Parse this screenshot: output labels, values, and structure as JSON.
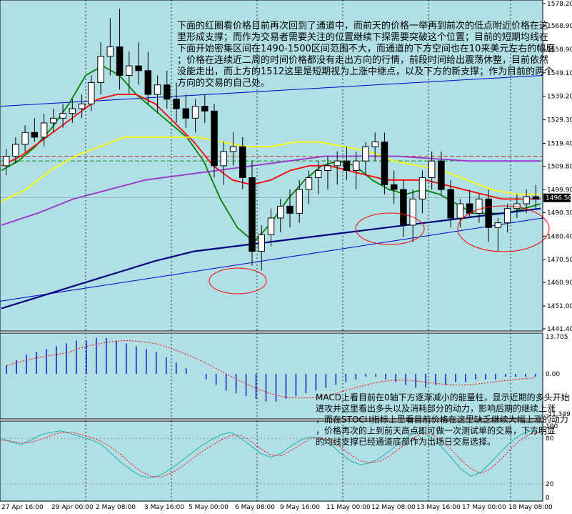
{
  "chart_data": {
    "type": "candlestick",
    "instrument_note": "",
    "price_axis": {
      "ticks": [
        "1578.20",
        "1568.90",
        "1558.90",
        "1549.10",
        "1539.20",
        "1529.30",
        "1519.40",
        "1509.80",
        "1499.90",
        "1490.30",
        "1480.40",
        "1470.50",
        "1460.90",
        "1451.00",
        "1441.40"
      ],
      "current_price_label": "1496.50",
      "range": [
        1441.4,
        1578.2
      ]
    },
    "time_axis": {
      "labels": [
        "27 Apr 16:00",
        "29 Apr 00:00",
        "2 May 08:00",
        "3 May 16:00",
        "5 May 00:00",
        "6 May 08:00",
        "9 May 16:00",
        "11 May 00:00",
        "12 May 08:00",
        "13 May 16:00",
        "17 May 00:00",
        "18 May 08:00"
      ]
    },
    "candles": [
      [
        1510,
        1517,
        1506,
        1514
      ],
      [
        1514,
        1522,
        1511,
        1519
      ],
      [
        1519,
        1527,
        1516,
        1524
      ],
      [
        1524,
        1530,
        1520,
        1522
      ],
      [
        1522,
        1532,
        1518,
        1528
      ],
      [
        1528,
        1534,
        1524,
        1530
      ],
      [
        1530,
        1536,
        1526,
        1532
      ],
      [
        1532,
        1538,
        1528,
        1534
      ],
      [
        1534,
        1540,
        1530,
        1536
      ],
      [
        1536,
        1548,
        1533,
        1545
      ],
      [
        1545,
        1562,
        1540,
        1556
      ],
      [
        1556,
        1572,
        1548,
        1560
      ],
      [
        1560,
        1576,
        1542,
        1548
      ],
      [
        1548,
        1558,
        1540,
        1552
      ],
      [
        1552,
        1562,
        1544,
        1550
      ],
      [
        1550,
        1558,
        1536,
        1540
      ],
      [
        1540,
        1548,
        1532,
        1544
      ],
      [
        1544,
        1550,
        1534,
        1538
      ],
      [
        1538,
        1545,
        1528,
        1534
      ],
      [
        1534,
        1540,
        1526,
        1530
      ],
      [
        1530,
        1538,
        1524,
        1535
      ],
      [
        1535,
        1540,
        1528,
        1533
      ],
      [
        1533,
        1536,
        1505,
        1510
      ],
      [
        1510,
        1520,
        1502,
        1516
      ],
      [
        1516,
        1524,
        1510,
        1518
      ],
      [
        1518,
        1522,
        1500,
        1505
      ],
      [
        1505,
        1512,
        1468,
        1474
      ],
      [
        1474,
        1485,
        1466,
        1481
      ],
      [
        1481,
        1492,
        1476,
        1488
      ],
      [
        1488,
        1496,
        1482,
        1493
      ],
      [
        1493,
        1500,
        1484,
        1490
      ],
      [
        1490,
        1504,
        1486,
        1500
      ],
      [
        1500,
        1508,
        1494,
        1505
      ],
      [
        1505,
        1512,
        1498,
        1508
      ],
      [
        1508,
        1514,
        1500,
        1510
      ],
      [
        1510,
        1516,
        1502,
        1512
      ],
      [
        1512,
        1518,
        1504,
        1508
      ],
      [
        1508,
        1516,
        1500,
        1512
      ],
      [
        1512,
        1520,
        1506,
        1518
      ],
      [
        1518,
        1524,
        1512,
        1520
      ],
      [
        1520,
        1524,
        1498,
        1502
      ],
      [
        1502,
        1508,
        1494,
        1500
      ],
      [
        1500,
        1504,
        1480,
        1485
      ],
      [
        1485,
        1500,
        1478,
        1496
      ],
      [
        1496,
        1508,
        1490,
        1505
      ],
      [
        1505,
        1516,
        1500,
        1512
      ],
      [
        1512,
        1516,
        1498,
        1500
      ],
      [
        1500,
        1504,
        1484,
        1488
      ],
      [
        1488,
        1496,
        1484,
        1494
      ],
      [
        1494,
        1500,
        1488,
        1490
      ],
      [
        1490,
        1498,
        1486,
        1496
      ],
      [
        1496,
        1500,
        1478,
        1484
      ],
      [
        1484,
        1488,
        1474,
        1486
      ],
      [
        1486,
        1494,
        1482,
        1492
      ],
      [
        1492,
        1498,
        1488,
        1494
      ],
      [
        1494,
        1500,
        1490,
        1497
      ],
      [
        1497,
        1502,
        1492,
        1496
      ]
    ],
    "moving_averages": [
      {
        "color": "#008000",
        "values": [
          1508,
          1512,
          1518,
          1526,
          1536,
          1548,
          1552,
          1548,
          1540,
          1534,
          1528,
          1522,
          1512,
          1496,
          1484,
          1478,
          1486,
          1496,
          1504,
          1510,
          1512,
          1510,
          1504,
          1500,
          1498,
          1500,
          1498,
          1494,
          1490,
          1490,
          1490,
          1492,
          1494
        ]
      },
      {
        "color": "#ff0000",
        "values": [
          1510,
          1514,
          1520,
          1526,
          1532,
          1538,
          1540,
          1540,
          1536,
          1528,
          1520,
          1510,
          1504,
          1502,
          1504,
          1508,
          1510,
          1510,
          1508,
          1506,
          1504,
          1504,
          1504,
          1502,
          1500,
          1498,
          1496,
          1496,
          1496
        ]
      },
      {
        "color": "#ffff00",
        "values": [
          1495,
          1500,
          1508,
          1514,
          1518,
          1522,
          1522,
          1522,
          1522,
          1520,
          1518,
          1518,
          1520,
          1520,
          1518,
          1516,
          1512,
          1510,
          1508,
          1504,
          1500,
          1498,
          1498
        ]
      },
      {
        "color": "#9933cc",
        "values": [
          1485,
          1490,
          1496,
          1500,
          1504,
          1506,
          1508,
          1510,
          1512,
          1514,
          1514,
          1514,
          1513,
          1512,
          1512,
          1512
        ]
      },
      {
        "color": "#000080",
        "values": [
          1450,
          1455,
          1460,
          1465,
          1470,
          1474,
          1476,
          1478,
          1480,
          1482,
          1484,
          1486,
          1488,
          1490,
          1492
        ]
      }
    ],
    "annotation_main": "下面的红圈看价格目前再次回到了通道中，而前天的价格一举再到前次的低点附近价格在这里形成支撑；而作为交易者需要关注的位置继续下探需要突破这个位置；目前的短期均线在下面开始密集区间在1490-1500区间范围不大，而通道的下方空间也在10来美元左右的幅度；价格在连续近二周的时间价格都没有走出方向的行情，前段时间给出震荡休整，目前依然没能走出，而上方的1512这里是短期视为上涨中继点，以及下方的新支撑；作为目前的两个方向的交易的自己处。",
    "macd": {
      "axis_ticks": [
        "13.705",
        "0.00",
        "-11.349"
      ],
      "histogram": [
        3,
        5,
        7,
        8,
        9,
        10,
        11,
        12,
        12,
        13,
        13,
        12,
        11,
        10,
        9,
        8,
        6,
        4,
        2,
        0,
        -2,
        -4,
        -6,
        -7,
        -8,
        -9,
        -10,
        -10,
        -9,
        -8,
        -7,
        -6,
        -5,
        -4,
        -3,
        -2,
        -1,
        -1,
        -2,
        -3,
        -4,
        -5,
        -5,
        -4,
        -4,
        -3,
        -3,
        -2,
        -2,
        -2,
        -1,
        -1,
        -1,
        -1
      ],
      "annotation": "MACD上看目前在0轴下方逐渐减小的能量柱，显示近期的多头开始进攻并这里看出多头以及消耗部分的动力，影响后期的继续上涨，而在STOCH指标上里看目前价格在这里缺乏继续大幅上涨的动力，价格再次的上到前天高点即可做一次测试单的交易，下方明显的均线支撑已经通道底部作为出场日交易选择。"
    },
    "stoch": {
      "axis_ticks": [
        "100",
        "80",
        "20",
        "0"
      ],
      "k": [
        80,
        75,
        72,
        78,
        85,
        88,
        90,
        86,
        82,
        78,
        72,
        60,
        48,
        38,
        30,
        28,
        32,
        40,
        50,
        60,
        70,
        78,
        85,
        88,
        80,
        70,
        60,
        55,
        60,
        70,
        78,
        82,
        80,
        72,
        60,
        50,
        45,
        48,
        55,
        65,
        75,
        85,
        90,
        82,
        70,
        55,
        40,
        30,
        35,
        48,
        62,
        75,
        85,
        90,
        88
      ],
      "d": [
        78,
        76,
        74,
        75,
        79,
        84,
        88,
        88,
        85,
        81,
        76,
        68,
        58,
        46,
        36,
        30,
        29,
        34,
        42,
        52,
        62,
        70,
        78,
        84,
        84,
        76,
        66,
        58,
        57,
        64,
        72,
        80,
        81,
        77,
        68,
        58,
        50,
        48,
        50,
        58,
        68,
        78,
        86,
        86,
        78,
        66,
        52,
        40,
        34,
        40,
        52,
        66,
        78,
        86,
        88
      ]
    }
  }
}
